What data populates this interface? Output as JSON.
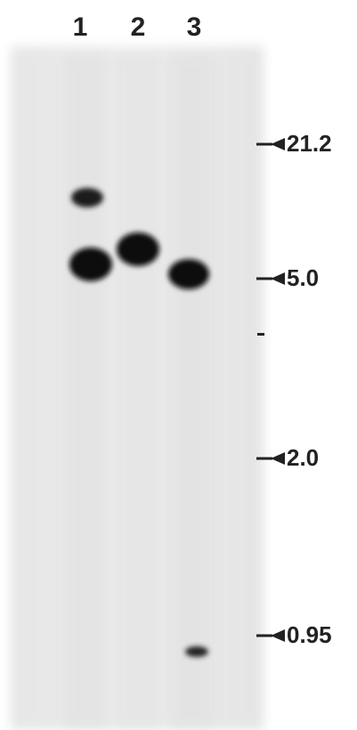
{
  "lanes": {
    "labels": [
      "1",
      "2",
      "3"
    ]
  },
  "markers": {
    "labels": [
      "21.2",
      "5.0",
      "2.0",
      "0.95"
    ]
  }
}
